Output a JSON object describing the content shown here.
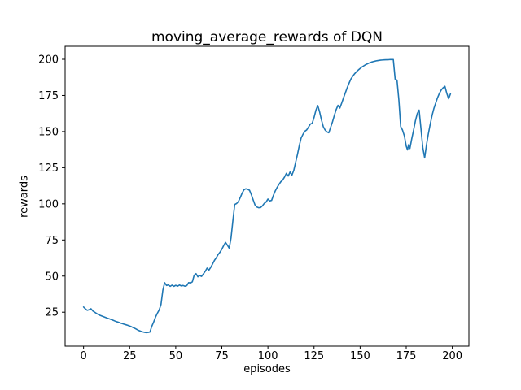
{
  "figure": {
    "background": "#ffffff",
    "spine_color": "#000000",
    "tick_label_color": "#000000"
  },
  "chart_data": {
    "type": "line",
    "title": "moving_average_rewards of DQN",
    "xlabel": "episodes",
    "ylabel": "rewards",
    "xlim": [
      -10,
      209
    ],
    "ylim": [
      1.5,
      209
    ],
    "xticks": [
      0,
      25,
      50,
      75,
      100,
      125,
      150,
      175,
      200
    ],
    "yticks": [
      25,
      50,
      75,
      100,
      125,
      150,
      175,
      200
    ],
    "grid": false,
    "legend": "none",
    "line_color": "#1f77b4",
    "line_width": 1.6,
    "series": [
      {
        "points": [
          [
            0,
            28.6
          ],
          [
            1,
            27.3
          ],
          [
            2,
            26.3
          ],
          [
            3,
            26.7
          ],
          [
            4,
            27.4
          ],
          [
            5,
            25.9
          ],
          [
            6,
            25.0
          ],
          [
            7,
            24.2
          ],
          [
            8,
            23.4
          ],
          [
            9,
            22.8
          ],
          [
            10,
            22.3
          ],
          [
            11,
            21.8
          ],
          [
            12,
            21.3
          ],
          [
            13,
            20.8
          ],
          [
            14,
            20.4
          ],
          [
            15,
            19.9
          ],
          [
            16,
            19.4
          ],
          [
            17,
            18.9
          ],
          [
            18,
            18.4
          ],
          [
            19,
            18.0
          ],
          [
            20,
            17.5
          ],
          [
            21,
            17.1
          ],
          [
            22,
            16.7
          ],
          [
            23,
            16.3
          ],
          [
            24,
            15.9
          ],
          [
            25,
            15.4
          ],
          [
            26,
            14.9
          ],
          [
            27,
            14.3
          ],
          [
            28,
            13.7
          ],
          [
            29,
            13.0
          ],
          [
            30,
            12.3
          ],
          [
            31,
            11.8
          ],
          [
            32,
            11.4
          ],
          [
            33,
            11.1
          ],
          [
            34,
            10.9
          ],
          [
            35,
            11.0
          ],
          [
            36,
            11.3
          ],
          [
            37,
            15.2
          ],
          [
            38,
            18.1
          ],
          [
            39,
            21.5
          ],
          [
            40,
            24.2
          ],
          [
            41,
            26.5
          ],
          [
            42,
            30.3
          ],
          [
            43,
            40.2
          ],
          [
            44,
            45.4
          ],
          [
            45,
            43.5
          ],
          [
            46,
            43.9
          ],
          [
            47,
            42.9
          ],
          [
            48,
            43.7
          ],
          [
            49,
            42.9
          ],
          [
            50,
            43.6
          ],
          [
            51,
            43.0
          ],
          [
            52,
            43.8
          ],
          [
            53,
            43.2
          ],
          [
            54,
            43.5
          ],
          [
            55,
            43.0
          ],
          [
            56,
            43.4
          ],
          [
            57,
            45.5
          ],
          [
            58,
            45.2
          ],
          [
            59,
            46.0
          ],
          [
            60,
            50.6
          ],
          [
            61,
            51.7
          ],
          [
            62,
            49.5
          ],
          [
            63,
            50.4
          ],
          [
            64,
            49.8
          ],
          [
            65,
            51.5
          ],
          [
            66,
            53.3
          ],
          [
            67,
            55.5
          ],
          [
            68,
            54.1
          ],
          [
            69,
            56.1
          ],
          [
            70,
            58.4
          ],
          [
            71,
            60.9
          ],
          [
            72,
            62.7
          ],
          [
            73,
            64.9
          ],
          [
            74,
            66.5
          ],
          [
            75,
            68.6
          ],
          [
            76,
            71.1
          ],
          [
            77,
            73.3
          ],
          [
            78,
            71.4
          ],
          [
            79,
            69.3
          ],
          [
            80,
            76.5
          ],
          [
            81,
            88.5
          ],
          [
            82,
            99.6
          ],
          [
            83,
            100.2
          ],
          [
            84,
            101.6
          ],
          [
            85,
            104.4
          ],
          [
            86,
            107.4
          ],
          [
            87,
            109.7
          ],
          [
            88,
            110.4
          ],
          [
            89,
            110.1
          ],
          [
            90,
            109.4
          ],
          [
            91,
            106.4
          ],
          [
            92,
            102.7
          ],
          [
            93,
            99.2
          ],
          [
            94,
            97.8
          ],
          [
            95,
            97.3
          ],
          [
            96,
            97.4
          ],
          [
            97,
            98.6
          ],
          [
            98,
            100.3
          ],
          [
            99,
            101.2
          ],
          [
            100,
            103.3
          ],
          [
            101,
            102.0
          ],
          [
            102,
            102.4
          ],
          [
            103,
            106.0
          ],
          [
            104,
            109.0
          ],
          [
            105,
            111.4
          ],
          [
            106,
            113.5
          ],
          [
            107,
            115.3
          ],
          [
            108,
            116.5
          ],
          [
            109,
            118.5
          ],
          [
            110,
            121.1
          ],
          [
            111,
            119.2
          ],
          [
            112,
            122.0
          ],
          [
            113,
            119.8
          ],
          [
            114,
            123.1
          ],
          [
            115,
            128.6
          ],
          [
            116,
            134.1
          ],
          [
            117,
            140.2
          ],
          [
            118,
            145.5
          ],
          [
            119,
            148.1
          ],
          [
            120,
            150.2
          ],
          [
            121,
            151.1
          ],
          [
            122,
            153.1
          ],
          [
            123,
            155.2
          ],
          [
            124,
            155.7
          ],
          [
            125,
            159.7
          ],
          [
            126,
            164.7
          ],
          [
            127,
            168.0
          ],
          [
            128,
            163.8
          ],
          [
            129,
            158.2
          ],
          [
            130,
            153.5
          ],
          [
            131,
            151.1
          ],
          [
            132,
            149.8
          ],
          [
            133,
            149.2
          ],
          [
            134,
            152.9
          ],
          [
            135,
            156.7
          ],
          [
            136,
            161.1
          ],
          [
            137,
            165.2
          ],
          [
            138,
            168.2
          ],
          [
            139,
            166.3
          ],
          [
            140,
            169.7
          ],
          [
            141,
            173.4
          ],
          [
            142,
            176.9
          ],
          [
            143,
            180.4
          ],
          [
            144,
            183.5
          ],
          [
            145,
            186.4
          ],
          [
            146,
            188.3
          ],
          [
            147,
            190.0
          ],
          [
            148,
            191.4
          ],
          [
            149,
            192.6
          ],
          [
            150,
            193.7
          ],
          [
            151,
            194.7
          ],
          [
            152,
            195.5
          ],
          [
            153,
            196.3
          ],
          [
            154,
            196.9
          ],
          [
            155,
            197.5
          ],
          [
            156,
            198.0
          ],
          [
            157,
            198.4
          ],
          [
            158,
            198.7
          ],
          [
            159,
            199.0
          ],
          [
            160,
            199.2
          ],
          [
            161,
            199.4
          ],
          [
            162,
            199.5
          ],
          [
            163,
            199.6
          ],
          [
            164,
            199.7
          ],
          [
            165,
            199.7
          ],
          [
            166,
            199.8
          ],
          [
            167,
            199.8
          ],
          [
            168,
            199.8
          ],
          [
            169,
            186.3
          ],
          [
            170,
            185.6
          ],
          [
            171,
            172.0
          ],
          [
            172,
            153.5
          ],
          [
            173,
            151.0
          ],
          [
            174,
            147.0
          ],
          [
            175,
            140.0
          ],
          [
            175.7,
            137.3
          ],
          [
            176.3,
            140.9
          ],
          [
            177,
            138.3
          ],
          [
            178,
            145.0
          ],
          [
            179,
            151.0
          ],
          [
            180,
            157.5
          ],
          [
            181,
            162.5
          ],
          [
            182,
            164.9
          ],
          [
            183,
            152.0
          ],
          [
            184,
            139.0
          ],
          [
            185,
            131.8
          ],
          [
            186,
            140.8
          ],
          [
            187,
            148.4
          ],
          [
            188,
            155.0
          ],
          [
            189,
            161.0
          ],
          [
            190,
            166.0
          ],
          [
            191,
            169.8
          ],
          [
            192,
            173.5
          ],
          [
            193,
            176.5
          ],
          [
            194,
            178.8
          ],
          [
            195,
            180.3
          ],
          [
            196,
            181.3
          ],
          [
            197,
            176.5
          ],
          [
            198,
            172.7
          ],
          [
            199,
            176.1
          ]
        ]
      }
    ]
  }
}
